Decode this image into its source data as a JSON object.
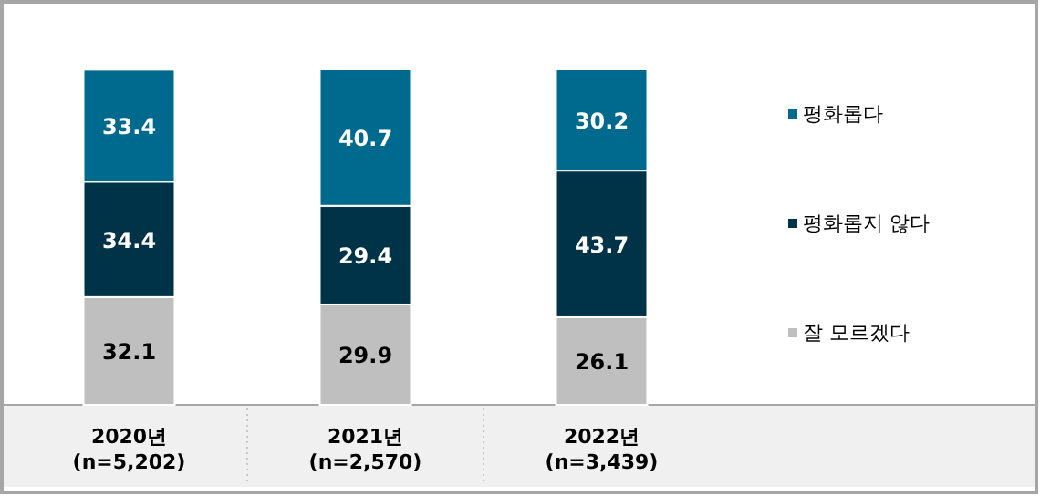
{
  "chart_data": {
    "type": "bar",
    "stacked": true,
    "data_labels": true,
    "legend": "right",
    "categories": [
      "2020년\n(n=5,202)",
      "2021년\n(n=2,570)",
      "2022년\n(n=3,439)"
    ],
    "series": [
      {
        "name": "잘 모르겠다",
        "color": "#bfbfbf",
        "values": [
          32.1,
          29.9,
          26.1
        ]
      },
      {
        "name": "평화롭지 않다",
        "color": "#003347",
        "values": [
          34.4,
          29.4,
          43.7
        ]
      },
      {
        "name": "평화롭다",
        "color": "#006a8e",
        "values": [
          33.4,
          40.7,
          30.2
        ]
      }
    ]
  }
}
